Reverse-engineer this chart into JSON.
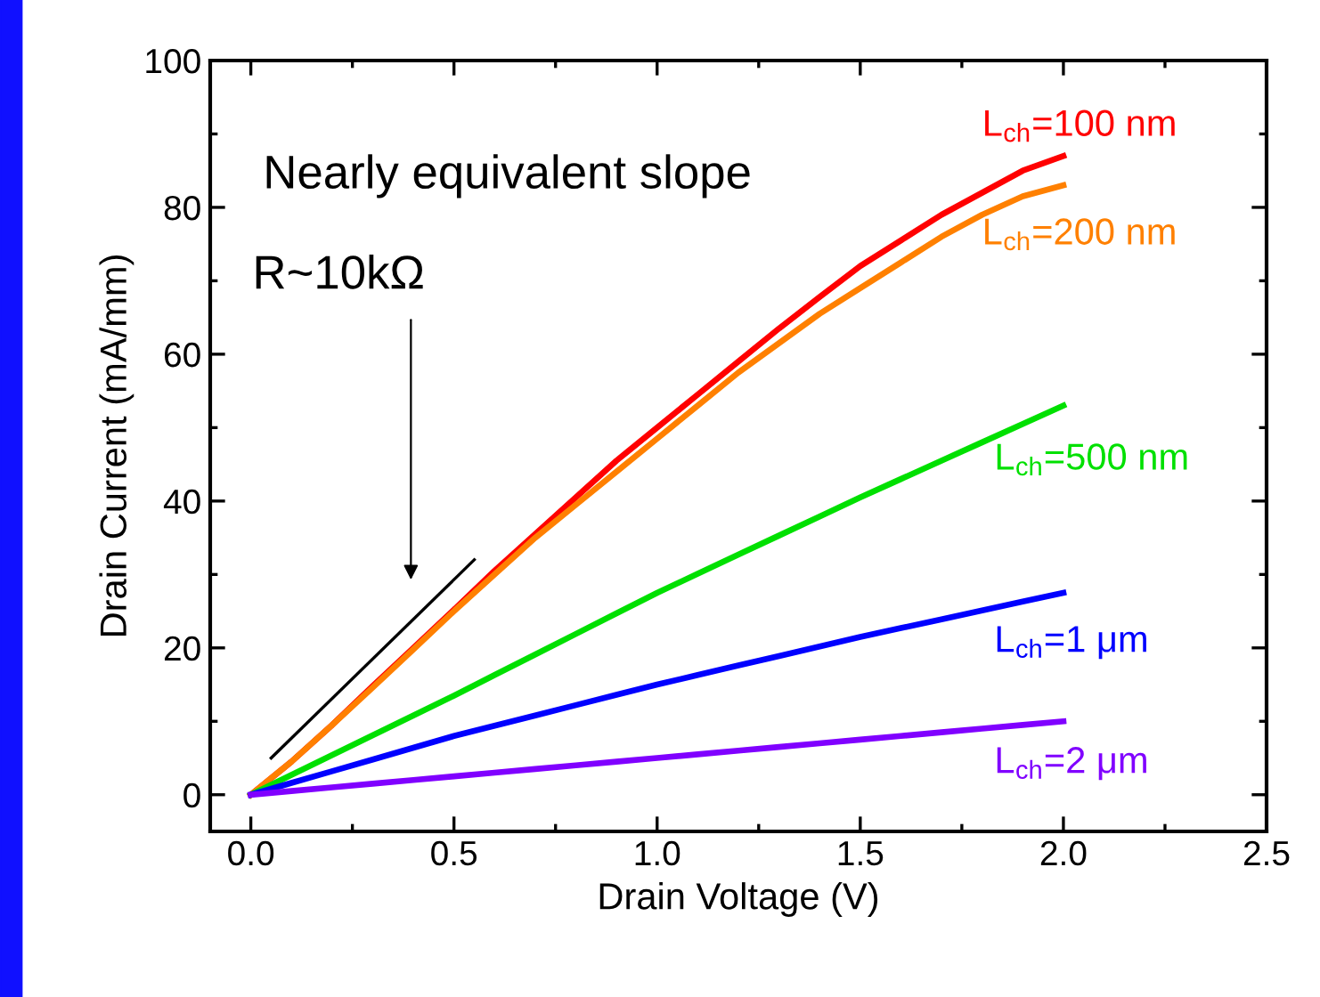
{
  "chart_data": {
    "type": "line",
    "xlabel": "Drain Voltage (V)",
    "ylabel": "Drain Current (mA/mm)",
    "x": [
      0,
      0.1,
      0.2,
      0.3,
      0.4,
      0.5,
      0.6,
      0.7,
      0.8,
      0.9,
      1.0,
      1.1,
      1.2,
      1.3,
      1.4,
      1.5,
      1.6,
      1.7,
      1.8,
      1.9,
      2.0
    ],
    "series": [
      {
        "name": "L$_{ch}$=100 nm",
        "color": "#ff0000",
        "values": [
          0,
          4.5,
          9.5,
          14.8,
          20,
          25.2,
          30.5,
          35.5,
          40.5,
          45.5,
          50,
          54.5,
          59,
          63.5,
          67.8,
          72,
          75.5,
          79,
          82,
          85,
          87
        ]
      },
      {
        "name": "L$_{ch}$=200 nm",
        "color": "#ff8000",
        "values": [
          0,
          4.5,
          9.5,
          14.6,
          19.8,
          25,
          30,
          35,
          39.5,
          44,
          48.5,
          53,
          57.5,
          61.5,
          65.5,
          69,
          72.5,
          76,
          79,
          81.5,
          83
        ]
      },
      {
        "name": "L$_{ch}$=500 nm",
        "color": "#00e000",
        "values": [
          0,
          2.7,
          5.4,
          8.1,
          10.8,
          13.5,
          16.3,
          19.1,
          21.9,
          24.7,
          27.5,
          30.1,
          32.7,
          35.3,
          37.9,
          40.5,
          43,
          45.5,
          48,
          50.5,
          53
        ]
      },
      {
        "name": "L$_{ch}$=1 μm",
        "color": "#0000ff",
        "values": [
          0,
          1.6,
          3.2,
          4.8,
          6.4,
          8,
          9.4,
          10.8,
          12.2,
          13.6,
          15,
          16.3,
          17.6,
          18.9,
          20.2,
          21.5,
          22.7,
          23.9,
          25.1,
          26.3,
          27.5
        ]
      },
      {
        "name": "L$_{ch}$=2 μm",
        "color": "#8000ff",
        "values": [
          0,
          0.5,
          1,
          1.5,
          2,
          2.5,
          3,
          3.5,
          4,
          4.5,
          5,
          5.5,
          6,
          6.5,
          7,
          7.5,
          8,
          8.5,
          9,
          9.5,
          10
        ]
      },
      {
        "type": "line",
        "color": "#000000",
        "x": [
          0.05,
          0.55
        ],
        "values": [
          5,
          32
        ]
      }
    ],
    "annotations": [
      "Nearly equivalent slope",
      "R~10kΩ"
    ],
    "xlim": [
      -0.1,
      2.5
    ],
    "xticks": [
      {
        "value": 0,
        "label": "0.0"
      },
      0.5,
      {
        "value": 1,
        "label": "1.0"
      },
      1.5,
      {
        "value": 2,
        "label": "2.0"
      },
      2.5
    ],
    "ylim": [
      -5,
      100
    ],
    "yticks": [
      0,
      20,
      40,
      60,
      80,
      100
    ],
    "grid": false,
    "legend": false
  }
}
